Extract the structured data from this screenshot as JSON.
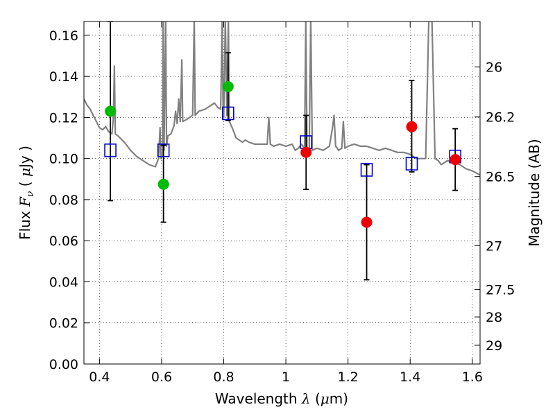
{
  "chart_data": {
    "type": "scatter",
    "title": "",
    "xlabel": {
      "prefix": "Wavelength ",
      "symbol": "λ",
      "open": " (",
      "unit_symbol": "μ",
      "unit": "m)"
    },
    "ylabel": {
      "prefix": "Flux ",
      "symbol": "F",
      "subscript": "ν",
      "open": " ( ",
      "unit_symbol": "μ",
      "unit": "Jy )"
    },
    "y2label": "Magnitude (AB)",
    "xlim": [
      0.35,
      1.625
    ],
    "ylim": [
      0.0,
      0.1667
    ],
    "grid": true,
    "grid_style": "dotted",
    "x_ticks": [
      {
        "value": 0.4,
        "label": "0.4"
      },
      {
        "value": 0.6,
        "label": "0.6"
      },
      {
        "value": 0.8,
        "label": "0.8"
      },
      {
        "value": 1.0,
        "label": "1"
      },
      {
        "value": 1.2,
        "label": "1.2"
      },
      {
        "value": 1.4,
        "label": "1.4"
      },
      {
        "value": 1.6,
        "label": "1.6"
      }
    ],
    "y_ticks": [
      {
        "value": 0.0,
        "label": "0.00"
      },
      {
        "value": 0.02,
        "label": "0.02"
      },
      {
        "value": 0.04,
        "label": "0.04"
      },
      {
        "value": 0.06,
        "label": "0.06"
      },
      {
        "value": 0.08,
        "label": "0.08"
      },
      {
        "value": 0.1,
        "label": "0.10"
      },
      {
        "value": 0.12,
        "label": "0.12"
      },
      {
        "value": 0.14,
        "label": "0.14"
      },
      {
        "value": 0.16,
        "label": "0.16"
      }
    ],
    "y2_ticks": [
      {
        "value": 26.0,
        "label": "26"
      },
      {
        "value": 26.2,
        "label": "26.2"
      },
      {
        "value": 26.5,
        "label": "26.5"
      },
      {
        "value": 27.0,
        "label": "27"
      },
      {
        "value": 27.5,
        "label": "27.5"
      },
      {
        "value": 28.0,
        "label": "28"
      },
      {
        "value": 29.0,
        "label": "29"
      }
    ],
    "model_spectrum": {
      "color": "#808080",
      "points": [
        [
          0.35,
          0.129
        ],
        [
          0.36,
          0.126
        ],
        [
          0.37,
          0.124
        ],
        [
          0.38,
          0.121
        ],
        [
          0.39,
          0.118
        ],
        [
          0.4,
          0.115
        ],
        [
          0.41,
          0.114
        ],
        [
          0.42,
          0.1155
        ],
        [
          0.43,
          0.113
        ],
        [
          0.44,
          0.112
        ],
        [
          0.445,
          0.12
        ],
        [
          0.448,
          0.145
        ],
        [
          0.451,
          0.112
        ],
        [
          0.46,
          0.111
        ],
        [
          0.48,
          0.108
        ],
        [
          0.5,
          0.104
        ],
        [
          0.52,
          0.101
        ],
        [
          0.54,
          0.099
        ],
        [
          0.56,
          0.097
        ],
        [
          0.58,
          0.096
        ],
        [
          0.59,
          0.1
        ],
        [
          0.595,
          0.115
        ],
        [
          0.598,
          0.1
        ],
        [
          0.603,
          0.102
        ],
        [
          0.605,
          0.168
        ],
        [
          0.608,
          0.104
        ],
        [
          0.613,
          0.168
        ],
        [
          0.616,
          0.106
        ],
        [
          0.62,
          0.111
        ],
        [
          0.63,
          0.112
        ],
        [
          0.64,
          0.116
        ],
        [
          0.645,
          0.123
        ],
        [
          0.65,
          0.117
        ],
        [
          0.655,
          0.129
        ],
        [
          0.66,
          0.118
        ],
        [
          0.665,
          0.148
        ],
        [
          0.668,
          0.118
        ],
        [
          0.68,
          0.119
        ],
        [
          0.69,
          0.12
        ],
        [
          0.7,
          0.121
        ],
        [
          0.705,
          0.168
        ],
        [
          0.708,
          0.121
        ],
        [
          0.72,
          0.123
        ],
        [
          0.74,
          0.124
        ],
        [
          0.76,
          0.126
        ],
        [
          0.77,
          0.127
        ],
        [
          0.78,
          0.125
        ],
        [
          0.79,
          0.124
        ],
        [
          0.795,
          0.168
        ],
        [
          0.798,
          0.122
        ],
        [
          0.8,
          0.12
        ],
        [
          0.805,
          0.168
        ],
        [
          0.81,
          0.121
        ],
        [
          0.815,
          0.168
        ],
        [
          0.818,
          0.118
        ],
        [
          0.83,
          0.114
        ],
        [
          0.84,
          0.11
        ],
        [
          0.85,
          0.109
        ],
        [
          0.86,
          0.108
        ],
        [
          0.87,
          0.109
        ],
        [
          0.88,
          0.108
        ],
        [
          0.9,
          0.107
        ],
        [
          0.92,
          0.107
        ],
        [
          0.94,
          0.107
        ],
        [
          0.945,
          0.12
        ],
        [
          0.95,
          0.107
        ],
        [
          0.96,
          0.106
        ],
        [
          0.98,
          0.107
        ],
        [
          1.0,
          0.106
        ],
        [
          1.02,
          0.107
        ],
        [
          1.03,
          0.104
        ],
        [
          1.04,
          0.105
        ],
        [
          1.05,
          0.107
        ],
        [
          1.06,
          0.105
        ],
        [
          1.064,
          0.168
        ],
        [
          1.068,
          0.103
        ],
        [
          1.075,
          0.103
        ],
        [
          1.08,
          0.168
        ],
        [
          1.085,
          0.104
        ],
        [
          1.1,
          0.105
        ],
        [
          1.12,
          0.104
        ],
        [
          1.14,
          0.106
        ],
        [
          1.15,
          0.115
        ],
        [
          1.155,
          0.121
        ],
        [
          1.16,
          0.106
        ],
        [
          1.17,
          0.104
        ],
        [
          1.18,
          0.105
        ],
        [
          1.185,
          0.118
        ],
        [
          1.19,
          0.105
        ],
        [
          1.2,
          0.106
        ],
        [
          1.22,
          0.107
        ],
        [
          1.24,
          0.106
        ],
        [
          1.26,
          0.106
        ],
        [
          1.28,
          0.105
        ],
        [
          1.3,
          0.104
        ],
        [
          1.32,
          0.105
        ],
        [
          1.34,
          0.104
        ],
        [
          1.36,
          0.103
        ],
        [
          1.38,
          0.103
        ],
        [
          1.4,
          0.102
        ],
        [
          1.41,
          0.101
        ],
        [
          1.42,
          0.1
        ],
        [
          1.44,
          0.1
        ],
        [
          1.45,
          0.1
        ],
        [
          1.46,
          0.168
        ],
        [
          1.47,
          0.168
        ],
        [
          1.48,
          0.1
        ],
        [
          1.49,
          0.099
        ],
        [
          1.5,
          0.097
        ],
        [
          1.51,
          0.098
        ],
        [
          1.52,
          0.099
        ],
        [
          1.54,
          0.098
        ],
        [
          1.56,
          0.097
        ],
        [
          1.58,
          0.095
        ],
        [
          1.6,
          0.094
        ],
        [
          1.625,
          0.092
        ]
      ]
    },
    "model_photometry": {
      "color": "#0000cc",
      "marker": "open-square",
      "points": [
        {
          "x": 0.435,
          "y": 0.104
        },
        {
          "x": 0.606,
          "y": 0.104
        },
        {
          "x": 0.814,
          "y": 0.122
        },
        {
          "x": 1.065,
          "y": 0.108
        },
        {
          "x": 1.26,
          "y": 0.0945
        },
        {
          "x": 1.405,
          "y": 0.0975
        },
        {
          "x": 1.545,
          "y": 0.101
        }
      ]
    },
    "observed_optical": {
      "color": "#00bb00",
      "marker": "filled-circle",
      "points": [
        {
          "x": 0.435,
          "y": 0.123,
          "ylo": 0.0795,
          "yhi": 0.1667
        },
        {
          "x": 0.606,
          "y": 0.0875,
          "ylo": 0.069,
          "yhi": 0.1065
        },
        {
          "x": 0.814,
          "y": 0.135,
          "ylo": 0.1185,
          "yhi": 0.1515
        }
      ]
    },
    "observed_nir": {
      "color": "#ee0000",
      "marker": "filled-circle",
      "points": [
        {
          "x": 1.065,
          "y": 0.103,
          "ylo": 0.085,
          "yhi": 0.121
        },
        {
          "x": 1.26,
          "y": 0.069,
          "ylo": 0.041,
          "yhi": 0.097
        },
        {
          "x": 1.405,
          "y": 0.1155,
          "ylo": 0.0935,
          "yhi": 0.138
        },
        {
          "x": 1.545,
          "y": 0.0995,
          "ylo": 0.0845,
          "yhi": 0.1145
        }
      ]
    }
  }
}
